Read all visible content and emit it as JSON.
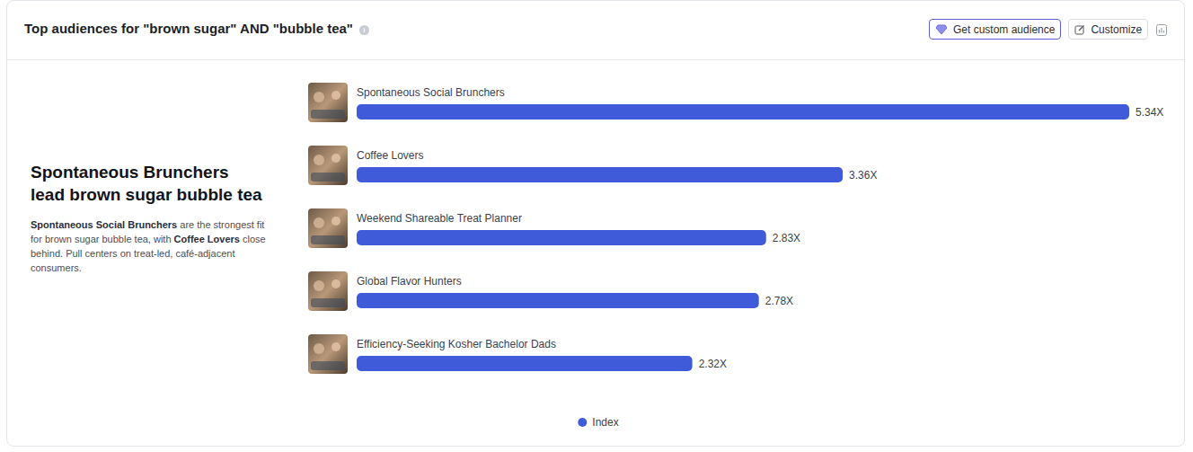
{
  "chart_data": {
    "type": "bar",
    "orientation": "horizontal",
    "title": "Top audiences for \"brown sugar\" AND \"bubble tea\"",
    "categories": [
      "Spontaneous Social Brunchers",
      "Coffee Lovers",
      "Weekend Shareable Treat Planner",
      "Global Flavor Hunters",
      "Efficiency-Seeking Kosher Bachelor Dads"
    ],
    "series": [
      {
        "name": "Index",
        "color": "#3f5bd9",
        "values": [
          5.34,
          3.36,
          2.83,
          2.78,
          2.32
        ],
        "value_labels": [
          "5.34X",
          "3.36X",
          "2.83X",
          "2.78X",
          "2.32X"
        ]
      }
    ],
    "xlim": [
      0,
      5.34
    ],
    "data_labels": true,
    "legend": "bottom",
    "tick_labels": false,
    "grid": false
  },
  "page": {
    "buttons": [
      "Get custom audience",
      "Customize"
    ],
    "summary": {
      "headline": "Spontaneous Brunchers lead brown sugar bubble tea",
      "body": [
        {
          "text": "Spontaneous Social Brunchers",
          "bold": true
        },
        {
          "text": " are the strongest fit for brown sugar bubble tea, with ",
          "bold": false
        },
        {
          "text": "Coffee Lovers",
          "bold": true
        },
        {
          "text": " close behind. Pull centers on treat-led, café-adjacent consumers.",
          "bold": false
        }
      ]
    }
  }
}
